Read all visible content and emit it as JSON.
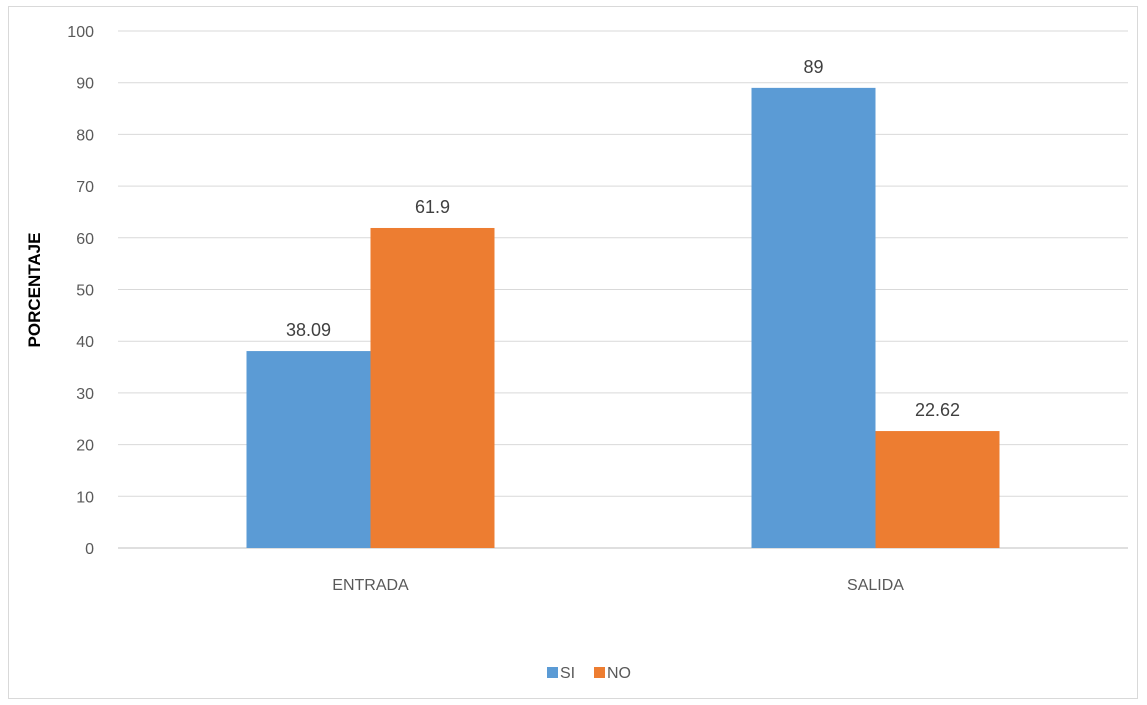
{
  "chart_data": {
    "type": "bar",
    "title": "",
    "xlabel": "",
    "ylabel": "PORCENTAJE",
    "ylim": [
      0,
      100
    ],
    "ytick_step": 10,
    "grid": true,
    "legend_position": "bottom",
    "categories": [
      "ENTRADA",
      "SALIDA"
    ],
    "series": [
      {
        "name": "SI",
        "values": [
          38.09,
          89
        ],
        "color": "#5b9bd5"
      },
      {
        "name": "NO",
        "values": [
          61.9,
          22.62
        ],
        "color": "#ed7d31"
      }
    ]
  }
}
